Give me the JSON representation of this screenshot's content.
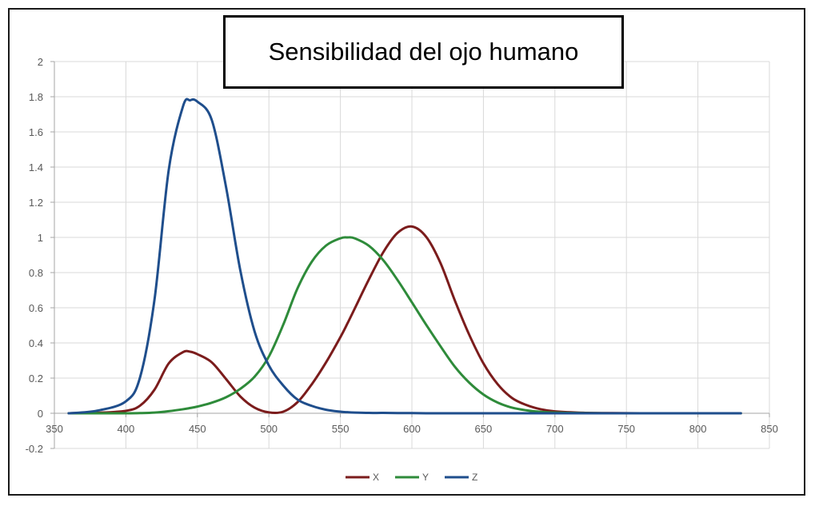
{
  "chart_data": {
    "type": "line",
    "title": "Sensibilidad del ojo humano",
    "xlabel": "",
    "ylabel": "",
    "xlim": [
      350,
      850
    ],
    "ylim": [
      -0.2,
      2
    ],
    "x_ticks": [
      350,
      400,
      450,
      500,
      550,
      600,
      650,
      700,
      750,
      800,
      850
    ],
    "y_ticks": [
      -0.2,
      0,
      0.2,
      0.4,
      0.6,
      0.8,
      1,
      1.2,
      1.4,
      1.6,
      1.8,
      2
    ],
    "grid": true,
    "legend_position": "bottom",
    "x": [
      360,
      380,
      400,
      410,
      420,
      430,
      440,
      445,
      450,
      460,
      470,
      480,
      490,
      500,
      510,
      520,
      530,
      540,
      550,
      555,
      560,
      570,
      580,
      590,
      600,
      610,
      620,
      630,
      640,
      650,
      660,
      670,
      680,
      690,
      700,
      720,
      740,
      760,
      780,
      800,
      830
    ],
    "series": [
      {
        "name": "X",
        "color": "#7b1c1c",
        "values": [
          0.0,
          0.003,
          0.014,
          0.044,
          0.134,
          0.284,
          0.348,
          0.35,
          0.336,
          0.29,
          0.195,
          0.096,
          0.032,
          0.005,
          0.009,
          0.063,
          0.165,
          0.29,
          0.433,
          0.512,
          0.595,
          0.762,
          0.916,
          1.026,
          1.062,
          1.003,
          0.854,
          0.642,
          0.448,
          0.284,
          0.165,
          0.087,
          0.047,
          0.023,
          0.011,
          0.003,
          0.001,
          0.0,
          0.0,
          0.0,
          0.0
        ]
      },
      {
        "name": "Y",
        "color": "#2e8b3a",
        "values": [
          0.0,
          0.0,
          0.0,
          0.001,
          0.004,
          0.012,
          0.023,
          0.03,
          0.038,
          0.06,
          0.091,
          0.139,
          0.208,
          0.323,
          0.503,
          0.71,
          0.862,
          0.954,
          0.995,
          1.0,
          0.995,
          0.952,
          0.87,
          0.757,
          0.631,
          0.503,
          0.381,
          0.265,
          0.175,
          0.107,
          0.061,
          0.032,
          0.017,
          0.008,
          0.004,
          0.001,
          0.0,
          0.0,
          0.0,
          0.0,
          0.0
        ]
      },
      {
        "name": "Z",
        "color": "#1f4e8c",
        "values": [
          0.0,
          0.015,
          0.068,
          0.207,
          0.646,
          1.386,
          1.747,
          1.78,
          1.772,
          1.669,
          1.288,
          0.813,
          0.465,
          0.272,
          0.158,
          0.078,
          0.042,
          0.02,
          0.009,
          0.006,
          0.004,
          0.002,
          0.002,
          0.001,
          0.001,
          0.0,
          0.0,
          0.0,
          0.0,
          0.0,
          0.0,
          0.0,
          0.0,
          0.0,
          0.0,
          0.0,
          0.0,
          0.0,
          0.0,
          0.0,
          0.0
        ]
      }
    ]
  }
}
